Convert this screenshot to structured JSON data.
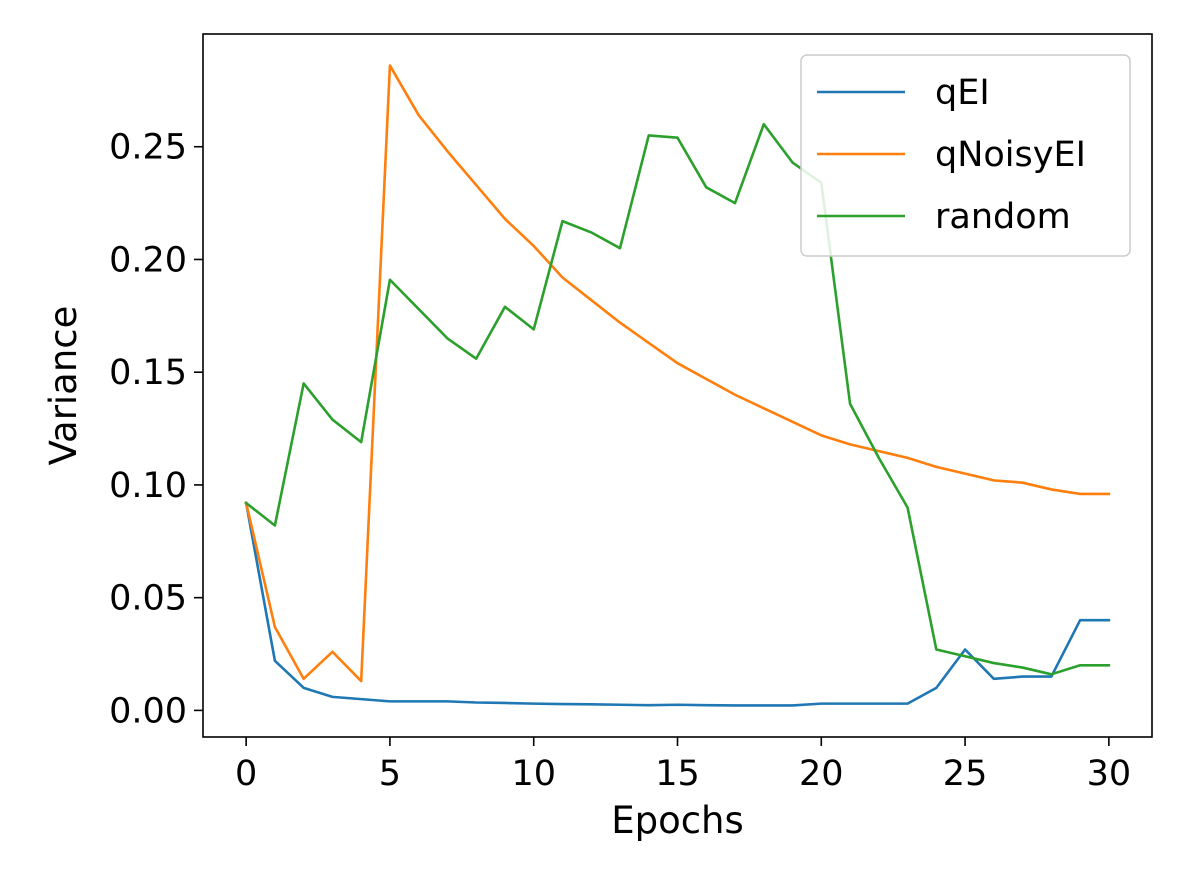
{
  "chart_data": {
    "type": "line",
    "xlabel": "Epochs",
    "ylabel": "Variance",
    "xlim": [
      -1.5,
      31.5
    ],
    "ylim": [
      -0.0118,
      0.3
    ],
    "xticks": [
      0,
      5,
      10,
      15,
      20,
      25,
      30
    ],
    "xtick_labels": [
      "0",
      "5",
      "10",
      "15",
      "20",
      "25",
      "30"
    ],
    "yticks": [
      0.0,
      0.05,
      0.1,
      0.15,
      0.2,
      0.25
    ],
    "ytick_labels": [
      "0.00",
      "0.05",
      "0.10",
      "0.15",
      "0.20",
      "0.25"
    ],
    "grid": false,
    "legend_position": "top-right",
    "x": [
      0,
      1,
      2,
      3,
      4,
      5,
      6,
      7,
      8,
      9,
      10,
      11,
      12,
      13,
      14,
      15,
      16,
      17,
      18,
      19,
      20,
      21,
      22,
      23,
      24,
      25,
      26,
      27,
      28,
      29,
      30
    ],
    "series": [
      {
        "name": "qEI",
        "color": "#1f77b4",
        "values": [
          0.092,
          0.022,
          0.01,
          0.006,
          0.005,
          0.004,
          0.004,
          0.004,
          0.0035,
          0.0033,
          0.003,
          0.0028,
          0.0027,
          0.0025,
          0.0023,
          0.0025,
          0.0023,
          0.0022,
          0.0022,
          0.0022,
          0.003,
          0.003,
          0.003,
          0.003,
          0.01,
          0.027,
          0.014,
          0.015,
          0.015,
          0.04,
          0.04
        ]
      },
      {
        "name": "qNoisyEI",
        "color": "#ff7f0e",
        "values": [
          0.092,
          0.037,
          0.014,
          0.026,
          0.013,
          0.286,
          0.264,
          0.248,
          0.233,
          0.218,
          0.206,
          0.192,
          0.182,
          0.172,
          0.163,
          0.154,
          0.147,
          0.14,
          0.134,
          0.128,
          0.122,
          0.118,
          0.115,
          0.112,
          0.108,
          0.105,
          0.102,
          0.101,
          0.098,
          0.096,
          0.096
        ]
      },
      {
        "name": "random",
        "color": "#2ca02c",
        "values": [
          0.092,
          0.082,
          0.145,
          0.129,
          0.119,
          0.191,
          0.178,
          0.165,
          0.156,
          0.179,
          0.169,
          0.217,
          0.212,
          0.205,
          0.255,
          0.254,
          0.232,
          0.225,
          0.26,
          0.243,
          0.234,
          0.136,
          0.112,
          0.09,
          0.027,
          0.024,
          0.021,
          0.019,
          0.016,
          0.02,
          0.02
        ]
      }
    ]
  }
}
